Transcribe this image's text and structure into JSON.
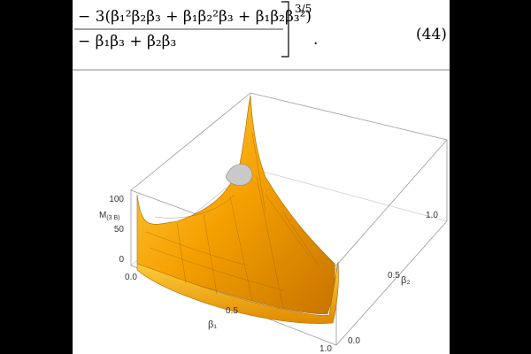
{
  "equation": {
    "numerator": "− 3(β₁²β₂β₃ + β₁β₂²β₃ + β₁β₂β₃²)",
    "denominator": "− β₁β₃ + β₂β₃",
    "exponent": "3/5",
    "period": ".",
    "number": "(44)"
  },
  "figure": {
    "z_label": {
      "main": "M",
      "sub": "(3 B)"
    },
    "z_ticks": [
      "100",
      "50",
      "0"
    ],
    "x_label": "β₁",
    "x_ticks": [
      "0.0",
      "0.5",
      "1.0"
    ],
    "y_label": "β₂",
    "y_ticks": [
      "0.0",
      "0.5",
      "1.0"
    ]
  }
}
